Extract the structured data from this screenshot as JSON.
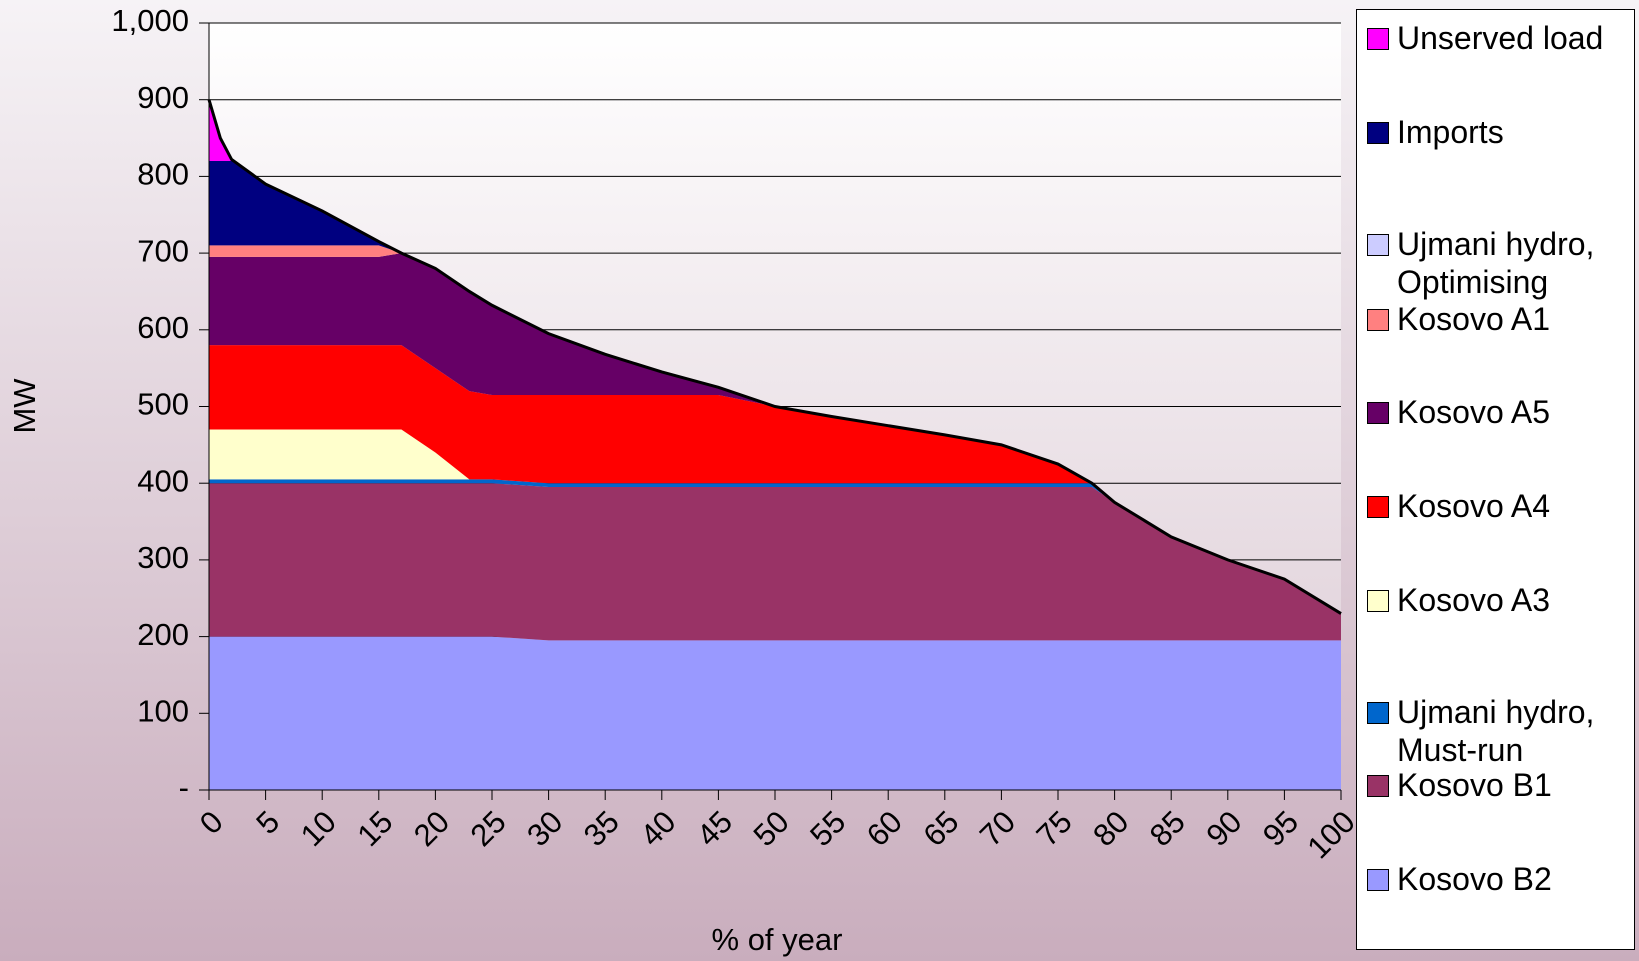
{
  "chart_data": {
    "type": "stacked-area",
    "xlabel": "% of year",
    "ylabel": "MW",
    "x": [
      0,
      1,
      2,
      5,
      10,
      15,
      17,
      20,
      23,
      25,
      30,
      35,
      40,
      45,
      50,
      55,
      60,
      65,
      70,
      75,
      78,
      80,
      85,
      90,
      95,
      100
    ],
    "xlim": [
      0,
      100
    ],
    "xticks": [
      0,
      5,
      10,
      15,
      20,
      25,
      30,
      35,
      40,
      45,
      50,
      55,
      60,
      65,
      70,
      75,
      80,
      85,
      90,
      95,
      100
    ],
    "ylim": [
      0,
      1000
    ],
    "yticks": [
      {
        "value": 0,
        "label": "-"
      },
      100,
      200,
      300,
      400,
      500,
      600,
      700,
      800,
      900,
      {
        "value": 1000,
        "label": "1,000"
      }
    ],
    "grid": true,
    "legend": "right",
    "series": [
      {
        "name": "Kosovo B2",
        "color": "#9999ff",
        "values": [
          200,
          200,
          200,
          200,
          200,
          200,
          200,
          200,
          200,
          200,
          195,
          195,
          195,
          195,
          195,
          195,
          195,
          195,
          195,
          195,
          195,
          195,
          195,
          195,
          195,
          195
        ]
      },
      {
        "name": "Kosovo B1",
        "color": "#993366",
        "values": [
          200,
          200,
          200,
          200,
          200,
          200,
          200,
          200,
          200,
          200,
          200,
          200,
          200,
          200,
          200,
          200,
          200,
          200,
          200,
          200,
          200,
          180,
          135,
          105,
          80,
          35
        ]
      },
      {
        "name": "Ujmani hydro, Must-run",
        "color": "#0066cc",
        "values": [
          5,
          5,
          5,
          5,
          5,
          5,
          5,
          5,
          5,
          5,
          5,
          5,
          5,
          5,
          5,
          5,
          5,
          5,
          5,
          5,
          5,
          0,
          0,
          0,
          0,
          0
        ]
      },
      {
        "name": "Kosovo A3",
        "color": "#ffffcc",
        "values": [
          65,
          65,
          65,
          65,
          65,
          65,
          65,
          35,
          0,
          0,
          0,
          0,
          0,
          0,
          0,
          0,
          0,
          0,
          0,
          0,
          0,
          0,
          0,
          0,
          0,
          0
        ]
      },
      {
        "name": "Kosovo A4",
        "color": "#ff0000",
        "values": [
          110,
          110,
          110,
          110,
          110,
          110,
          110,
          110,
          115,
          110,
          115,
          115,
          115,
          115,
          100,
          87,
          75,
          63,
          50,
          25,
          0,
          0,
          0,
          0,
          0,
          0
        ]
      },
      {
        "name": "Kosovo A5",
        "color": "#660066",
        "values": [
          115,
          115,
          115,
          115,
          115,
          115,
          120,
          130,
          130,
          117,
          80,
          53,
          30,
          10,
          0,
          0,
          0,
          0,
          0,
          0,
          0,
          0,
          0,
          0,
          0,
          0
        ]
      },
      {
        "name": "Kosovo A1",
        "color": "#ff8080",
        "values": [
          15,
          15,
          15,
          15,
          15,
          15,
          0,
          0,
          0,
          0,
          0,
          0,
          0,
          0,
          0,
          0,
          0,
          0,
          0,
          0,
          0,
          0,
          0,
          0,
          0,
          0
        ]
      },
      {
        "name": "Ujmani hydro, Optimising",
        "color": "#ccccff",
        "values": [
          0,
          0,
          0,
          0,
          0,
          0,
          0,
          0,
          0,
          0,
          0,
          0,
          0,
          0,
          0,
          0,
          0,
          0,
          0,
          0,
          0,
          0,
          0,
          0,
          0,
          0
        ]
      },
      {
        "name": "Imports",
        "color": "#000080",
        "values": [
          110,
          110,
          110,
          80,
          45,
          5,
          0,
          0,
          0,
          0,
          0,
          0,
          0,
          0,
          0,
          0,
          0,
          0,
          0,
          0,
          0,
          0,
          0,
          0,
          0,
          0
        ]
      },
      {
        "name": "Unserved load",
        "color": "#ff00ff",
        "values": [
          80,
          30,
          2,
          0,
          0,
          0,
          0,
          0,
          0,
          0,
          0,
          0,
          0,
          0,
          0,
          0,
          0,
          0,
          0,
          0,
          0,
          0,
          0,
          0,
          0,
          0
        ]
      }
    ]
  }
}
